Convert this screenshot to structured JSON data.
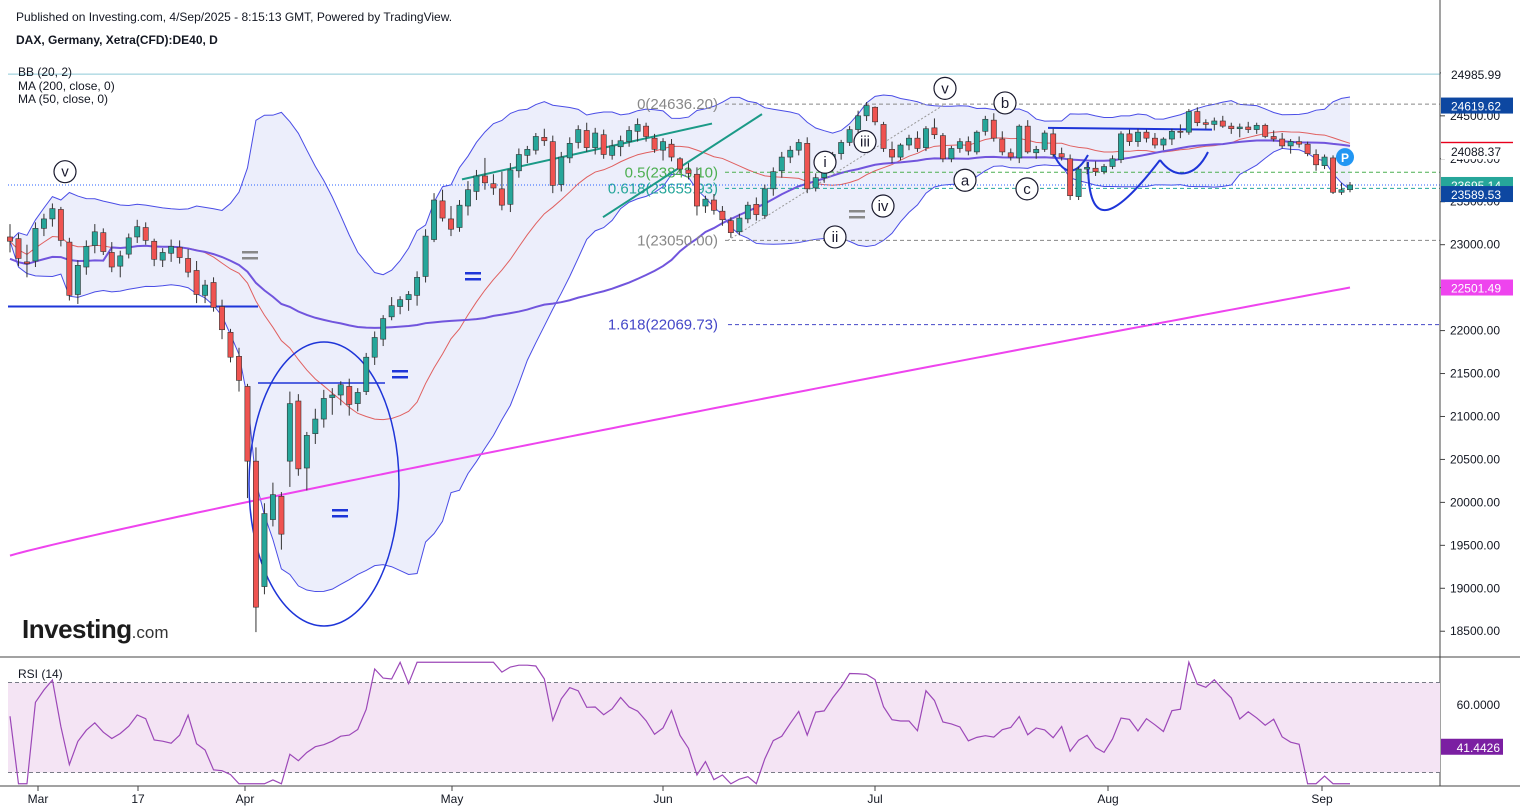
{
  "header": {
    "published": "Published on Investing.com, 4/Sep/2025 - 8:15:13 GMT, Powered by TradingView.",
    "symbol": "DAX, Germany, Xetra(CFD):DE40, D"
  },
  "legend": {
    "bb": "BB (20, 2)",
    "ma200": "MA (200, close, 0)",
    "ma50": "MA (50, close, 0)",
    "rsi": "RSI (14)"
  },
  "logo": {
    "brand": "Investing",
    "suffix": ".com"
  },
  "colors": {
    "up": "#26a69a",
    "down": "#ef5350",
    "bb_band": "#4a4de6",
    "bb_fill": "#eceefb",
    "ma200": "#ee44ee",
    "ma50": "#7155dd",
    "bb_basis": "#e06060",
    "rsi_line": "#9c48b8",
    "rsi_fill": "#f4e4f4"
  },
  "chart_data": {
    "type": "candlestick",
    "ylim": [
      18200,
      25150
    ],
    "y_ticks": [
      "25000.00",
      "24500.00",
      "24000.00",
      "23500.00",
      "23000.00",
      "22500.00",
      "22000.00",
      "21500.00",
      "21000.00",
      "20500.00",
      "20000.00",
      "19500.00",
      "19000.00",
      "18500.00"
    ],
    "x_ticks": [
      {
        "label": "Mar",
        "x": 38
      },
      {
        "label": "17",
        "x": 138
      },
      {
        "label": "Apr",
        "x": 245
      },
      {
        "label": "May",
        "x": 452
      },
      {
        "label": "Jun",
        "x": 663
      },
      {
        "label": "Jul",
        "x": 875
      },
      {
        "label": "Aug",
        "x": 1108
      },
      {
        "label": "Sep",
        "x": 1322
      }
    ],
    "price_labels": [
      {
        "text": "24985.99",
        "value": 24985.99,
        "bg": "#ffffff",
        "fg": "#131722"
      },
      {
        "text": "24619.62",
        "value": 24619.62,
        "bg": "#0d47a1",
        "fg": "#ffffff"
      },
      {
        "text": "24104.58",
        "value": 24104.58,
        "bg": "#e8001c",
        "fg": "#ffffff"
      },
      {
        "text": "24088.37",
        "value": 24088.37,
        "bg": "#ffffff",
        "fg": "#131722"
      },
      {
        "text": "23695.14",
        "value": 23695.14,
        "bg": "#26a69a",
        "fg": "#ffffff"
      },
      {
        "text": "23589.53",
        "value": 23589.53,
        "bg": "#0d47a1",
        "fg": "#ffffff"
      },
      {
        "text": "22501.49",
        "value": 22501.49,
        "bg": "#ee44ee",
        "fg": "#ffffff"
      }
    ],
    "fib_levels": [
      {
        "text": "0(24636.20)",
        "value": 24636.2,
        "color": "#888888"
      },
      {
        "text": "0.5(23843.10)",
        "value": 23843.1,
        "color": "#4caf50"
      },
      {
        "text": "0.618(23655.93)",
        "value": 23655.93,
        "color": "#26a69a"
      },
      {
        "text": "1(23050.00)",
        "value": 23050.0,
        "color": "#888888"
      },
      {
        "text": "1.618(22069.73)",
        "value": 22069.73,
        "color": "#4447c8"
      }
    ],
    "waves": [
      {
        "text": "v",
        "x": 65,
        "value": 23850
      },
      {
        "text": "i",
        "x": 825,
        "value": 23960
      },
      {
        "text": "ii",
        "x": 835,
        "value": 23090
      },
      {
        "text": "iii",
        "x": 865,
        "value": 24200
      },
      {
        "text": "iv",
        "x": 883,
        "value": 23450
      },
      {
        "text": "v",
        "x": 945,
        "value": 24820
      },
      {
        "text": "a",
        "x": 965,
        "value": 23750
      },
      {
        "text": "b",
        "x": 1005,
        "value": 24650
      },
      {
        "text": "c",
        "x": 1027,
        "value": 23650
      }
    ],
    "ohlc": [
      [
        23090,
        23240,
        22910,
        23040
      ],
      [
        23070,
        23130,
        22750,
        22840
      ],
      [
        22800,
        23000,
        22620,
        22780
      ],
      [
        22810,
        23260,
        22740,
        23190
      ],
      [
        23190,
        23360,
        23100,
        23300
      ],
      [
        23300,
        23480,
        23210,
        23420
      ],
      [
        23410,
        23440,
        22980,
        23050
      ],
      [
        23030,
        23080,
        22350,
        22410
      ],
      [
        22420,
        22820,
        22310,
        22760
      ],
      [
        22740,
        23050,
        22650,
        22980
      ],
      [
        22990,
        23240,
        22900,
        23150
      ],
      [
        23140,
        23190,
        22880,
        22920
      ],
      [
        22910,
        23030,
        22680,
        22740
      ],
      [
        22750,
        22930,
        22620,
        22870
      ],
      [
        22890,
        23130,
        22840,
        23080
      ],
      [
        23090,
        23290,
        23020,
        23210
      ],
      [
        23200,
        23260,
        23000,
        23050
      ],
      [
        23040,
        23070,
        22750,
        22830
      ],
      [
        22820,
        22960,
        22740,
        22910
      ],
      [
        22900,
        23060,
        22800,
        22980
      ],
      [
        22970,
        23050,
        22780,
        22850
      ],
      [
        22840,
        22950,
        22620,
        22680
      ],
      [
        22700,
        22810,
        22320,
        22420
      ],
      [
        22410,
        22590,
        22320,
        22530
      ],
      [
        22560,
        22620,
        22220,
        22270
      ],
      [
        22280,
        22360,
        21900,
        22010
      ],
      [
        21980,
        22020,
        21630,
        21690
      ],
      [
        21700,
        21800,
        21290,
        21420
      ],
      [
        21350,
        21380,
        20050,
        20480
      ],
      [
        20480,
        20640,
        18490,
        18780
      ],
      [
        19020,
        19990,
        18930,
        19870
      ],
      [
        19800,
        20230,
        19720,
        20090
      ],
      [
        20070,
        20120,
        19450,
        19630
      ],
      [
        20480,
        21290,
        20180,
        21150
      ],
      [
        21180,
        21260,
        20310,
        20390
      ],
      [
        20400,
        20820,
        20140,
        20780
      ],
      [
        20800,
        21090,
        20680,
        20970
      ],
      [
        20970,
        21310,
        20870,
        21210
      ],
      [
        21220,
        21330,
        21020,
        21250
      ],
      [
        21250,
        21410,
        21130,
        21370
      ],
      [
        21350,
        21440,
        21010,
        21140
      ],
      [
        21150,
        21330,
        21060,
        21280
      ],
      [
        21290,
        21740,
        21250,
        21690
      ],
      [
        21690,
        21990,
        21600,
        21920
      ],
      [
        21900,
        22180,
        21820,
        22140
      ],
      [
        22160,
        22390,
        22120,
        22290
      ],
      [
        22280,
        22400,
        22190,
        22360
      ],
      [
        22360,
        22460,
        22230,
        22420
      ],
      [
        22410,
        22690,
        22290,
        22620
      ],
      [
        22630,
        23180,
        22560,
        23100
      ],
      [
        23060,
        23600,
        23030,
        23520
      ],
      [
        23510,
        23640,
        23270,
        23310
      ],
      [
        23300,
        23450,
        23100,
        23180
      ],
      [
        23200,
        23520,
        23150,
        23460
      ],
      [
        23450,
        23740,
        23340,
        23640
      ],
      [
        23620,
        23870,
        23520,
        23800
      ],
      [
        23800,
        24010,
        23640,
        23720
      ],
      [
        23710,
        23820,
        23580,
        23660
      ],
      [
        23650,
        23850,
        23400,
        23460
      ],
      [
        23470,
        23950,
        23380,
        23870
      ],
      [
        23860,
        24120,
        23780,
        24050
      ],
      [
        24040,
        24150,
        23950,
        24110
      ],
      [
        24100,
        24300,
        24050,
        24260
      ],
      [
        24250,
        24350,
        24150,
        24210
      ],
      [
        24200,
        24270,
        23600,
        23690
      ],
      [
        23700,
        24080,
        23620,
        24020
      ],
      [
        24010,
        24250,
        23950,
        24180
      ],
      [
        24190,
        24390,
        24120,
        24340
      ],
      [
        24330,
        24420,
        24080,
        24130
      ],
      [
        24130,
        24360,
        24050,
        24300
      ],
      [
        24280,
        24340,
        24000,
        24050
      ],
      [
        24040,
        24220,
        23990,
        24150
      ],
      [
        24140,
        24270,
        24030,
        24210
      ],
      [
        24200,
        24380,
        24140,
        24330
      ],
      [
        24320,
        24470,
        24200,
        24400
      ],
      [
        24380,
        24420,
        24200,
        24260
      ],
      [
        24240,
        24290,
        24070,
        24110
      ],
      [
        24100,
        24240,
        23980,
        24200
      ],
      [
        24170,
        24230,
        23970,
        24020
      ],
      [
        24000,
        24020,
        23830,
        23880
      ],
      [
        23870,
        23950,
        23760,
        23830
      ],
      [
        23820,
        23900,
        23340,
        23450
      ],
      [
        23450,
        23570,
        23370,
        23530
      ],
      [
        23520,
        23590,
        23350,
        23400
      ],
      [
        23390,
        23450,
        23220,
        23290
      ],
      [
        23280,
        23320,
        23080,
        23140
      ],
      [
        23150,
        23360,
        23110,
        23310
      ],
      [
        23300,
        23500,
        23250,
        23460
      ],
      [
        23470,
        23550,
        23280,
        23350
      ],
      [
        23340,
        23700,
        23300,
        23650
      ],
      [
        23650,
        23900,
        23570,
        23850
      ],
      [
        23860,
        24080,
        23780,
        24020
      ],
      [
        24020,
        24150,
        23950,
        24100
      ],
      [
        24100,
        24230,
        24040,
        24190
      ],
      [
        24180,
        24250,
        23600,
        23650
      ],
      [
        23660,
        23830,
        23620,
        23780
      ],
      [
        23780,
        23930,
        23720,
        23890
      ],
      [
        23900,
        24080,
        23850,
        24050
      ],
      [
        24060,
        24220,
        23990,
        24190
      ],
      [
        24190,
        24380,
        24150,
        24340
      ],
      [
        24340,
        24560,
        24290,
        24500
      ],
      [
        24500,
        24660,
        24440,
        24620
      ],
      [
        24600,
        24610,
        24390,
        24430
      ],
      [
        24400,
        24430,
        24080,
        24120
      ],
      [
        24110,
        24200,
        23950,
        24020
      ],
      [
        24020,
        24180,
        23980,
        24160
      ],
      [
        24160,
        24280,
        24100,
        24240
      ],
      [
        24240,
        24320,
        24080,
        24120
      ],
      [
        24130,
        24380,
        24090,
        24350
      ],
      [
        24360,
        24470,
        24230,
        24280
      ],
      [
        24270,
        24300,
        23960,
        24000
      ],
      [
        24000,
        24150,
        23960,
        24120
      ],
      [
        24120,
        24240,
        24070,
        24200
      ],
      [
        24200,
        24260,
        24040,
        24090
      ],
      [
        24080,
        24330,
        24050,
        24310
      ],
      [
        24320,
        24500,
        24270,
        24460
      ],
      [
        24450,
        24530,
        24200,
        24240
      ],
      [
        24230,
        24320,
        24040,
        24080
      ],
      [
        24070,
        24120,
        23980,
        24020
      ],
      [
        24010,
        24400,
        23950,
        24380
      ],
      [
        24380,
        24450,
        24060,
        24080
      ],
      [
        24070,
        24150,
        24000,
        24110
      ],
      [
        24110,
        24330,
        24080,
        24300
      ],
      [
        24290,
        24350,
        24020,
        24050
      ],
      [
        24060,
        24130,
        23980,
        24020
      ],
      [
        24000,
        24050,
        23520,
        23570
      ],
      [
        23560,
        23910,
        23520,
        23880
      ],
      [
        23880,
        23960,
        23820,
        23900
      ],
      [
        23890,
        23970,
        23800,
        23850
      ],
      [
        23850,
        23940,
        23820,
        23910
      ],
      [
        23910,
        24040,
        23880,
        24000
      ],
      [
        23990,
        24320,
        23950,
        24290
      ],
      [
        24290,
        24340,
        24150,
        24200
      ],
      [
        24200,
        24350,
        24140,
        24310
      ],
      [
        24310,
        24340,
        24190,
        24240
      ],
      [
        24240,
        24300,
        24120,
        24160
      ],
      [
        24160,
        24250,
        24100,
        24230
      ],
      [
        24230,
        24350,
        24160,
        24320
      ],
      [
        24320,
        24400,
        24240,
        24310
      ],
      [
        24310,
        24580,
        24280,
        24550
      ],
      [
        24550,
        24600,
        24380,
        24420
      ],
      [
        24420,
        24460,
        24350,
        24400
      ],
      [
        24400,
        24480,
        24330,
        24440
      ],
      [
        24440,
        24500,
        24360,
        24380
      ],
      [
        24380,
        24420,
        24290,
        24350
      ],
      [
        24350,
        24410,
        24250,
        24370
      ],
      [
        24370,
        24430,
        24300,
        24340
      ],
      [
        24340,
        24420,
        24290,
        24390
      ],
      [
        24390,
        24410,
        24240,
        24260
      ],
      [
        24260,
        24330,
        24200,
        24230
      ],
      [
        24230,
        24300,
        24120,
        24150
      ],
      [
        24150,
        24230,
        24060,
        24200
      ],
      [
        24200,
        24260,
        24130,
        24170
      ],
      [
        24170,
        24200,
        24030,
        24060
      ],
      [
        24050,
        24110,
        23860,
        23930
      ],
      [
        23920,
        24050,
        23880,
        24020
      ],
      [
        24010,
        24040,
        23590,
        23610
      ],
      [
        23610,
        23720,
        23580,
        23640
      ],
      [
        23640,
        23730,
        23610,
        23695
      ]
    ],
    "rsi": {
      "ylim": [
        24,
        80
      ],
      "y_ticks": [
        "60.0000"
      ],
      "levels": [
        70,
        30
      ],
      "last": 41.4426,
      "last_label": "41.4426"
    }
  }
}
